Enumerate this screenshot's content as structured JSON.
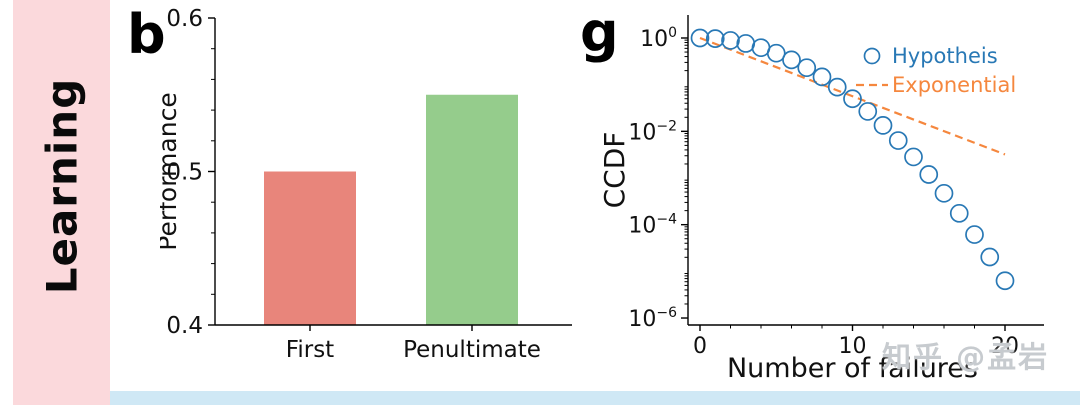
{
  "sidebar": {
    "label": "Learning",
    "band_color": "#fbd9dc"
  },
  "panels": {
    "b_label": "b",
    "g_label": "g"
  },
  "watermark": {
    "text": "知乎 @孟岩"
  },
  "colors": {
    "bar_first": "#e8857b",
    "bar_penultimate": "#95cc8c",
    "hypothesis_blue": "#2878b5",
    "exponential_orange": "#f5873e",
    "band_pink": "#fbd9dc",
    "strip_blue": "#cfe8f5"
  },
  "chart_data": [
    {
      "type": "bar",
      "panel": "b",
      "ylabel": "Performance",
      "categories": [
        "First",
        "Penultimate"
      ],
      "values": [
        0.5,
        0.55
      ],
      "bar_colors": [
        "#e8857b",
        "#95cc8c"
      ],
      "ylim": [
        0.4,
        0.6
      ],
      "yticks": [
        0.4,
        0.5,
        0.6
      ],
      "grid": false
    },
    {
      "type": "scatter",
      "panel": "g",
      "xlabel": "Number of failures",
      "ylabel": "CCDF",
      "yscale": "log",
      "xlim": [
        0,
        21
      ],
      "xticks": [
        0,
        10,
        20
      ],
      "ytick_exponents": [
        0,
        -2,
        -4,
        -6
      ],
      "ylim_exponents": [
        -6,
        0
      ],
      "legend_position": "upper right",
      "legend": [
        "Hypotheis",
        "Exponential"
      ],
      "series": [
        {
          "name": "Hypotheis",
          "marker": "open-circle",
          "color": "#2878b5",
          "x": [
            0,
            1,
            2,
            3,
            4,
            5,
            6,
            7,
            8,
            9,
            10,
            11,
            12,
            13,
            14,
            15,
            16,
            17,
            18,
            19,
            20
          ],
          "y": [
            1.0,
            0.97,
            0.887,
            0.764,
            0.62,
            0.473,
            0.34,
            0.231,
            0.147,
            0.0885,
            0.05,
            0.0267,
            0.0134,
            0.00635,
            0.00283,
            0.00119,
            0.00047,
            0.000175,
            6.14e-05,
            2.03e-05,
            6.3e-06
          ]
        },
        {
          "name": "Exponential",
          "marker": "dashed-line",
          "color": "#f5873e",
          "x": [
            0,
            20
          ],
          "y": [
            1.0,
            0.0032
          ]
        }
      ]
    }
  ]
}
